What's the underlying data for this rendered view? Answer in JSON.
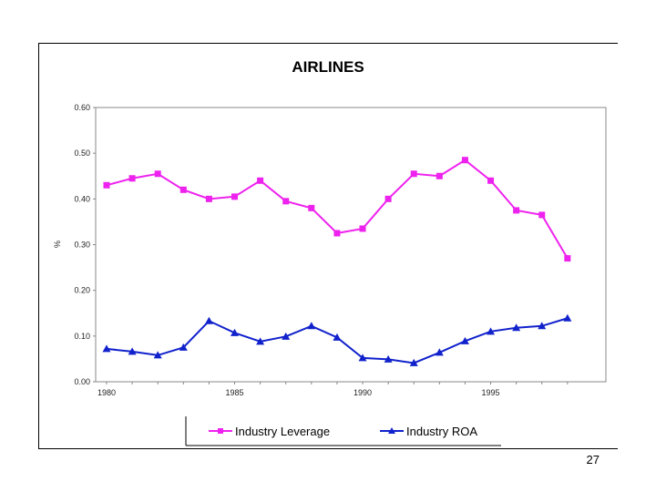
{
  "chart_data": {
    "type": "line",
    "title": "AIRLINES",
    "xlabel": "",
    "ylabel": "%",
    "x": [
      1980,
      1981,
      1982,
      1983,
      1984,
      1985,
      1986,
      1987,
      1988,
      1989,
      1990,
      1991,
      1992,
      1993,
      1994,
      1995,
      1996,
      1997,
      1998
    ],
    "x_ticks": [
      "1980",
      "1985",
      "1990",
      "1995"
    ],
    "x_tick_values": [
      1980,
      1985,
      1990,
      1995
    ],
    "y_ticks": [
      "0.00",
      "0.10",
      "0.20",
      "0.30",
      "0.40",
      "0.50",
      "0.60"
    ],
    "y_tick_values": [
      0,
      0.1,
      0.2,
      0.3,
      0.4,
      0.5,
      0.6
    ],
    "xlim": [
      1980,
      1999.5
    ],
    "ylim": [
      0,
      0.6
    ],
    "grid": false,
    "legend_position": "bottom",
    "series": [
      {
        "name": "Industry Leverage",
        "color": "#ee22ee",
        "marker": "square",
        "values": [
          0.43,
          0.445,
          0.455,
          0.42,
          0.4,
          0.405,
          0.44,
          0.395,
          0.38,
          0.325,
          0.335,
          0.4,
          0.455,
          0.45,
          0.485,
          0.44,
          0.375,
          0.365,
          0.27
        ]
      },
      {
        "name": "Industry ROA",
        "color": "#1122cc",
        "marker": "triangle",
        "values": [
          0.072,
          0.066,
          0.058,
          0.075,
          0.133,
          0.107,
          0.088,
          0.099,
          0.122,
          0.097,
          0.052,
          0.049,
          0.041,
          0.064,
          0.089,
          0.11,
          0.118,
          0.122,
          0.139
        ]
      }
    ]
  },
  "page_number": "27"
}
